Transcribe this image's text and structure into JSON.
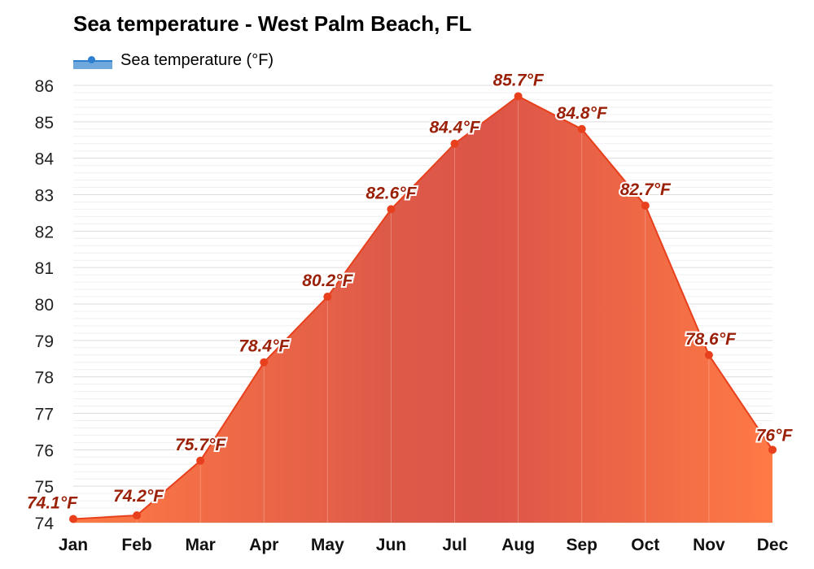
{
  "chart_data": {
    "type": "area",
    "title": "Sea temperature - West Palm Beach, FL",
    "xlabel": "",
    "ylabel": "",
    "categories": [
      "Jan",
      "Feb",
      "Mar",
      "Apr",
      "May",
      "Jun",
      "Jul",
      "Aug",
      "Sep",
      "Oct",
      "Nov",
      "Dec"
    ],
    "series": [
      {
        "name": "Sea temperature (°F)",
        "values": [
          74.1,
          74.2,
          75.7,
          78.4,
          80.2,
          82.6,
          84.4,
          85.7,
          84.8,
          82.7,
          78.6,
          76
        ],
        "labels": [
          "74.1°F",
          "74.2°F",
          "75.7°F",
          "78.4°F",
          "80.2°F",
          "82.6°F",
          "84.4°F",
          "85.7°F",
          "84.8°F",
          "82.7°F",
          "78.6°F",
          "76°F"
        ]
      }
    ],
    "yticks": [
      "74",
      "75",
      "76",
      "77",
      "78",
      "79",
      "80",
      "81",
      "82",
      "83",
      "84",
      "85",
      "86"
    ],
    "ylim": [
      74,
      86
    ],
    "grid": true,
    "legend_position": "top-left",
    "colors": {
      "line": "#e8401c",
      "marker": "#e8401c",
      "fill_warm": "#de5a48",
      "fill_cool": "#ff7a45",
      "legend": "#2f7fd1",
      "label": "#9b2008"
    }
  }
}
